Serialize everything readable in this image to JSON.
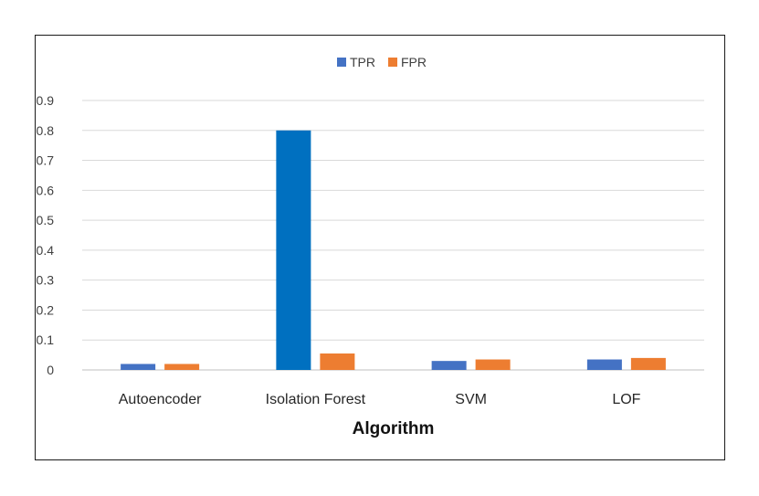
{
  "chart_data": {
    "type": "bar",
    "title": "",
    "xlabel": "Algorithm",
    "ylabel": "",
    "categories": [
      "Autoencoder",
      "Isolation Forest",
      "SVM",
      "LOF"
    ],
    "series": [
      {
        "name": "TPR",
        "color": "#4472C4",
        "values": [
          0.02,
          0.8,
          0.03,
          0.035
        ]
      },
      {
        "name": "FPR",
        "color": "#ED7D31",
        "values": [
          0.02,
          0.055,
          0.035,
          0.04
        ]
      }
    ],
    "ylim": [
      0,
      0.9
    ],
    "yticks": [
      "0",
      "0.1",
      "0.2",
      "0.3",
      "0.4",
      "0.5",
      "0.6",
      "0.7",
      "0.8",
      "0.9"
    ],
    "grid": true,
    "legend_position": "top-center",
    "highlight_color": "#0070C0"
  }
}
